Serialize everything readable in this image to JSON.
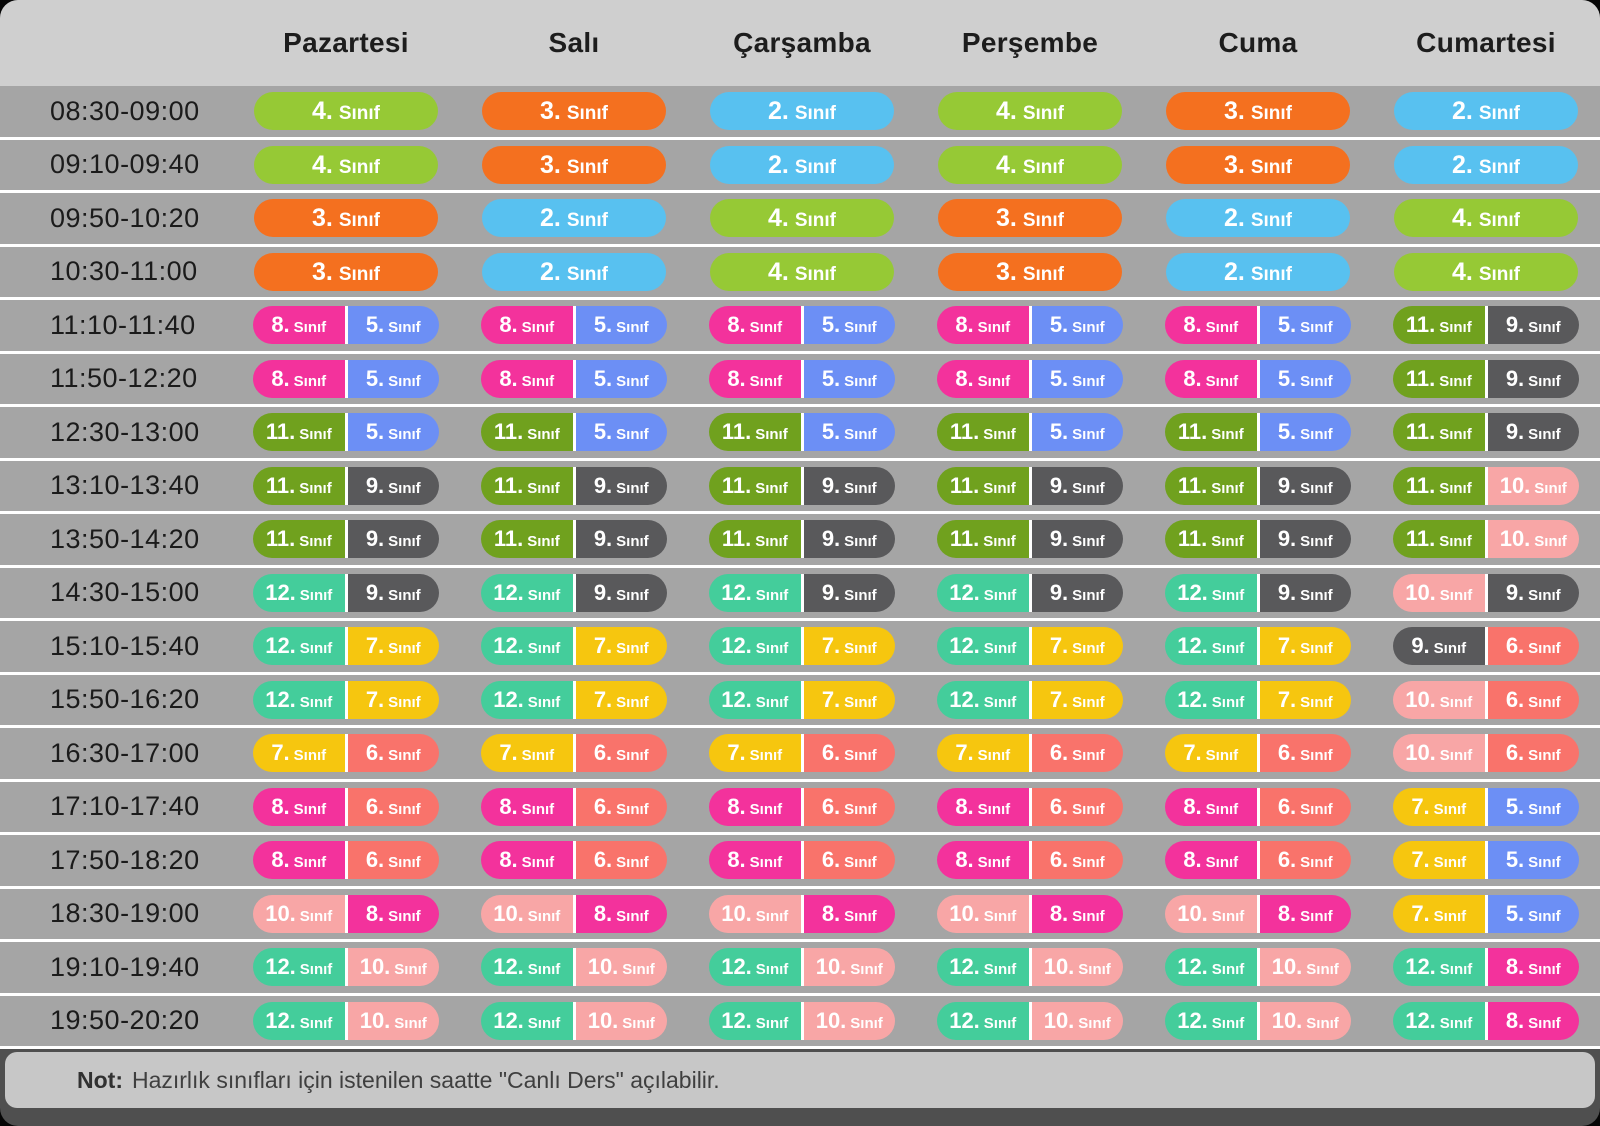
{
  "header": {
    "days": [
      "Pazartesi",
      "Salı",
      "Çarşamba",
      "Perşembe",
      "Cuma",
      "Cumartesi"
    ]
  },
  "palette": {
    "2": "#58C1F0",
    "3": "#F4701F",
    "4": "#96C935",
    "5": "#6C8FF5",
    "6": "#F9736B",
    "7": "#F6C60F",
    "8": "#F3329C",
    "9": "#59595B",
    "10": "#F8A6A6",
    "11": "#70A11E",
    "12": "#44CD9B"
  },
  "pill": {
    "dot": ".",
    "suffix": "Sınıf"
  },
  "rows": [
    {
      "time": "08:30-09:00",
      "cells": [
        [
          "4"
        ],
        [
          "3"
        ],
        [
          "2"
        ],
        [
          "4"
        ],
        [
          "3"
        ],
        [
          "2"
        ]
      ]
    },
    {
      "time": "09:10-09:40",
      "cells": [
        [
          "4"
        ],
        [
          "3"
        ],
        [
          "2"
        ],
        [
          "4"
        ],
        [
          "3"
        ],
        [
          "2"
        ]
      ]
    },
    {
      "time": "09:50-10:20",
      "cells": [
        [
          "3"
        ],
        [
          "2"
        ],
        [
          "4"
        ],
        [
          "3"
        ],
        [
          "2"
        ],
        [
          "4"
        ]
      ]
    },
    {
      "time": "10:30-11:00",
      "cells": [
        [
          "3"
        ],
        [
          "2"
        ],
        [
          "4"
        ],
        [
          "3"
        ],
        [
          "2"
        ],
        [
          "4"
        ]
      ]
    },
    {
      "time": "11:10-11:40",
      "cells": [
        [
          "8",
          "5"
        ],
        [
          "8",
          "5"
        ],
        [
          "8",
          "5"
        ],
        [
          "8",
          "5"
        ],
        [
          "8",
          "5"
        ],
        [
          "11",
          "9"
        ]
      ]
    },
    {
      "time": "11:50-12:20",
      "cells": [
        [
          "8",
          "5"
        ],
        [
          "8",
          "5"
        ],
        [
          "8",
          "5"
        ],
        [
          "8",
          "5"
        ],
        [
          "8",
          "5"
        ],
        [
          "11",
          "9"
        ]
      ]
    },
    {
      "time": "12:30-13:00",
      "cells": [
        [
          "11",
          "5"
        ],
        [
          "11",
          "5"
        ],
        [
          "11",
          "5"
        ],
        [
          "11",
          "5"
        ],
        [
          "11",
          "5"
        ],
        [
          "11",
          "9"
        ]
      ]
    },
    {
      "time": "13:10-13:40",
      "cells": [
        [
          "11",
          "9"
        ],
        [
          "11",
          "9"
        ],
        [
          "11",
          "9"
        ],
        [
          "11",
          "9"
        ],
        [
          "11",
          "9"
        ],
        [
          "11",
          "10"
        ]
      ]
    },
    {
      "time": "13:50-14:20",
      "cells": [
        [
          "11",
          "9"
        ],
        [
          "11",
          "9"
        ],
        [
          "11",
          "9"
        ],
        [
          "11",
          "9"
        ],
        [
          "11",
          "9"
        ],
        [
          "11",
          "10"
        ]
      ]
    },
    {
      "time": "14:30-15:00",
      "cells": [
        [
          "12",
          "9"
        ],
        [
          "12",
          "9"
        ],
        [
          "12",
          "9"
        ],
        [
          "12",
          "9"
        ],
        [
          "12",
          "9"
        ],
        [
          "10",
          "9"
        ]
      ]
    },
    {
      "time": "15:10-15:40",
      "cells": [
        [
          "12",
          "7"
        ],
        [
          "12",
          "7"
        ],
        [
          "12",
          "7"
        ],
        [
          "12",
          "7"
        ],
        [
          "12",
          "7"
        ],
        [
          "9",
          "6"
        ]
      ]
    },
    {
      "time": "15:50-16:20",
      "cells": [
        [
          "12",
          "7"
        ],
        [
          "12",
          "7"
        ],
        [
          "12",
          "7"
        ],
        [
          "12",
          "7"
        ],
        [
          "12",
          "7"
        ],
        [
          "10",
          "6"
        ]
      ]
    },
    {
      "time": "16:30-17:00",
      "cells": [
        [
          "7",
          "6"
        ],
        [
          "7",
          "6"
        ],
        [
          "7",
          "6"
        ],
        [
          "7",
          "6"
        ],
        [
          "7",
          "6"
        ],
        [
          "10",
          "6"
        ]
      ]
    },
    {
      "time": "17:10-17:40",
      "cells": [
        [
          "8",
          "6"
        ],
        [
          "8",
          "6"
        ],
        [
          "8",
          "6"
        ],
        [
          "8",
          "6"
        ],
        [
          "8",
          "6"
        ],
        [
          "7",
          "5"
        ]
      ]
    },
    {
      "time": "17:50-18:20",
      "cells": [
        [
          "8",
          "6"
        ],
        [
          "8",
          "6"
        ],
        [
          "8",
          "6"
        ],
        [
          "8",
          "6"
        ],
        [
          "8",
          "6"
        ],
        [
          "7",
          "5"
        ]
      ]
    },
    {
      "time": "18:30-19:00",
      "cells": [
        [
          "10",
          "8"
        ],
        [
          "10",
          "8"
        ],
        [
          "10",
          "8"
        ],
        [
          "10",
          "8"
        ],
        [
          "10",
          "8"
        ],
        [
          "7",
          "5"
        ]
      ]
    },
    {
      "time": "19:10-19:40",
      "cells": [
        [
          "12",
          "10"
        ],
        [
          "12",
          "10"
        ],
        [
          "12",
          "10"
        ],
        [
          "12",
          "10"
        ],
        [
          "12",
          "10"
        ],
        [
          "12",
          "8"
        ]
      ]
    },
    {
      "time": "19:50-20:20",
      "cells": [
        [
          "12",
          "10"
        ],
        [
          "12",
          "10"
        ],
        [
          "12",
          "10"
        ],
        [
          "12",
          "10"
        ],
        [
          "12",
          "10"
        ],
        [
          "12",
          "8"
        ]
      ]
    }
  ],
  "note": {
    "label": "Not:",
    "text": "Hazırlık sınıfları için istenilen saatte \"Canlı Ders\" açılabilir."
  }
}
